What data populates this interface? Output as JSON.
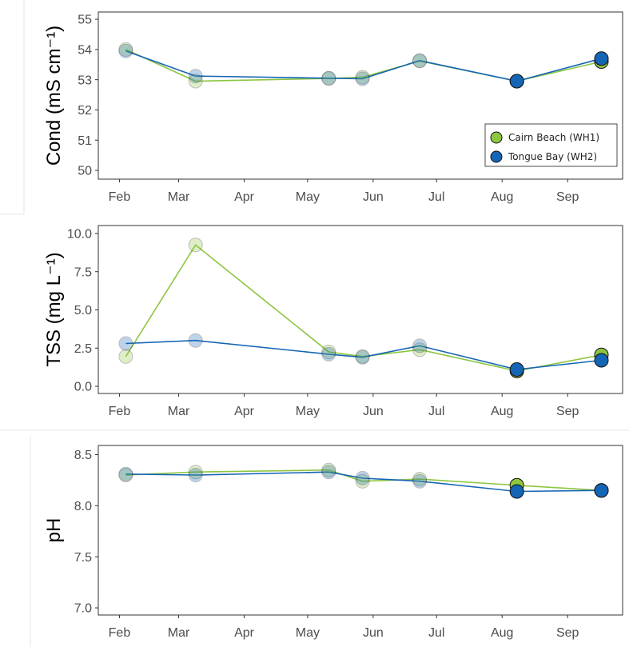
{
  "chart_data": [
    {
      "type": "line",
      "ylabel": "Cond (mS cm⁻¹)",
      "x": [
        "02-04",
        "03-09",
        "05-11",
        "05-27",
        "06-23",
        "08-08",
        "09-17"
      ],
      "xlim": [
        "01-22",
        "09-27"
      ],
      "xticks": [
        "02-01",
        "03-01",
        "04-01",
        "05-01",
        "06-01",
        "07-01",
        "08-01",
        "09-01"
      ],
      "xtick_labels": [
        "Feb",
        "Mar",
        "Apr",
        "May",
        "Jun",
        "Jul",
        "Aug",
        "Sep"
      ],
      "ylim": [
        49.71,
        55.24
      ],
      "yticks": [
        "50",
        "51",
        "52",
        "53",
        "54",
        "55"
      ],
      "grid": false,
      "legend": "bottom-right",
      "emphasized": [
        false,
        false,
        false,
        false,
        false,
        true,
        true
      ],
      "series": [
        {
          "name": "Cairn Beach (WH1)",
          "color": "#8dc63f",
          "values": [
            54.0,
            52.95,
            53.04,
            53.08,
            53.62,
            52.95,
            53.6
          ]
        },
        {
          "name": "Tongue Bay (WH2)",
          "color": "#1565b5",
          "values": [
            53.95,
            53.12,
            53.05,
            53.03,
            53.63,
            52.95,
            53.7
          ]
        }
      ]
    },
    {
      "type": "line",
      "ylabel": "TSS (mg L⁻¹)",
      "x": [
        "02-04",
        "03-09",
        "05-11",
        "05-27",
        "06-23",
        "08-08",
        "09-17"
      ],
      "xlim": [
        "01-22",
        "09-27"
      ],
      "xticks": [
        "02-01",
        "03-01",
        "04-01",
        "05-01",
        "06-01",
        "07-01",
        "08-01",
        "09-01"
      ],
      "xtick_labels": [
        "Feb",
        "Mar",
        "Apr",
        "May",
        "Jun",
        "Jul",
        "Aug",
        "Sep"
      ],
      "ylim": [
        -0.47,
        10.52
      ],
      "yticks": [
        "0.0",
        "2.5",
        "5.0",
        "7.5",
        "10.0"
      ],
      "grid": false,
      "legend": "none",
      "emphasized": [
        false,
        false,
        false,
        false,
        false,
        true,
        true
      ],
      "series": [
        {
          "color": "#8dc63f",
          "values": [
            1.95,
            9.25,
            2.25,
            1.95,
            2.4,
            1.0,
            2.05
          ]
        },
        {
          "color": "#1565b5",
          "values": [
            2.8,
            3.0,
            2.1,
            1.9,
            2.65,
            1.1,
            1.7
          ]
        }
      ]
    },
    {
      "type": "line",
      "ylabel": "pH",
      "x": [
        "02-04",
        "03-09",
        "05-11",
        "05-27",
        "06-23",
        "08-08",
        "09-17"
      ],
      "xlim": [
        "01-22",
        "09-27"
      ],
      "xticks": [
        "02-01",
        "03-01",
        "04-01",
        "05-01",
        "06-01",
        "07-01",
        "08-01",
        "09-01"
      ],
      "xtick_labels": [
        "Feb",
        "Mar",
        "Apr",
        "May",
        "Jun",
        "Jul",
        "Aug",
        "Sep"
      ],
      "ylim": [
        6.93,
        8.59
      ],
      "yticks": [
        "7.0",
        "7.5",
        "8.0",
        "8.5"
      ],
      "grid": false,
      "legend": "none",
      "emphasized": [
        false,
        false,
        false,
        false,
        false,
        true,
        true
      ],
      "series": [
        {
          "color": "#8dc63f",
          "values": [
            8.3,
            8.33,
            8.35,
            8.24,
            8.26,
            8.2,
            8.15
          ]
        },
        {
          "color": "#1565b5",
          "values": [
            8.31,
            8.3,
            8.33,
            8.27,
            8.24,
            8.14,
            8.15
          ]
        }
      ]
    }
  ]
}
